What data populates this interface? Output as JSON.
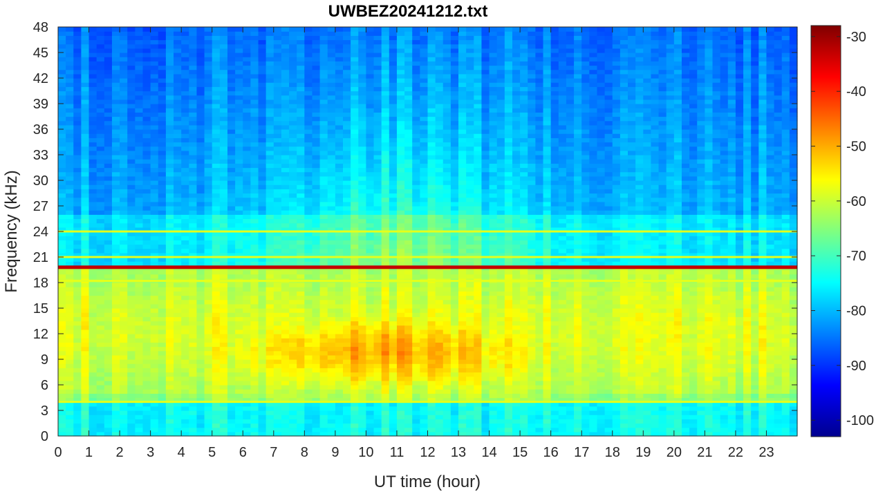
{
  "chart_data": {
    "type": "heatmap",
    "title": "UWBEZ20241212.txt",
    "xlabel": "UT time (hour)",
    "ylabel": "Frequency (kHz)",
    "xlim": [
      0,
      24
    ],
    "ylim": [
      0,
      48
    ],
    "x_ticks": [
      "0",
      "1",
      "2",
      "3",
      "4",
      "5",
      "6",
      "7",
      "8",
      "9",
      "10",
      "11",
      "12",
      "13",
      "14",
      "15",
      "16",
      "17",
      "18",
      "19",
      "20",
      "21",
      "22",
      "23"
    ],
    "y_ticks": [
      "0",
      "3",
      "6",
      "9",
      "12",
      "15",
      "18",
      "21",
      "24",
      "27",
      "30",
      "33",
      "36",
      "39",
      "42",
      "45",
      "48"
    ],
    "colorbar": {
      "range": [
        -103,
        -28
      ],
      "ticks": [
        "-30",
        "-40",
        "-50",
        "-60",
        "-70",
        "-80",
        "-90",
        "-100"
      ],
      "colormap": "jet"
    },
    "features": {
      "strong_line_khz": 19.8,
      "secondary_lines_khz": [
        18.2,
        21.0,
        24.0,
        4.0
      ],
      "broadband_enhancement": {
        "time_hours": [
          3.5,
          17
        ],
        "freq_khz": [
          4,
          16
        ],
        "peak_level_db": -50
      }
    }
  }
}
